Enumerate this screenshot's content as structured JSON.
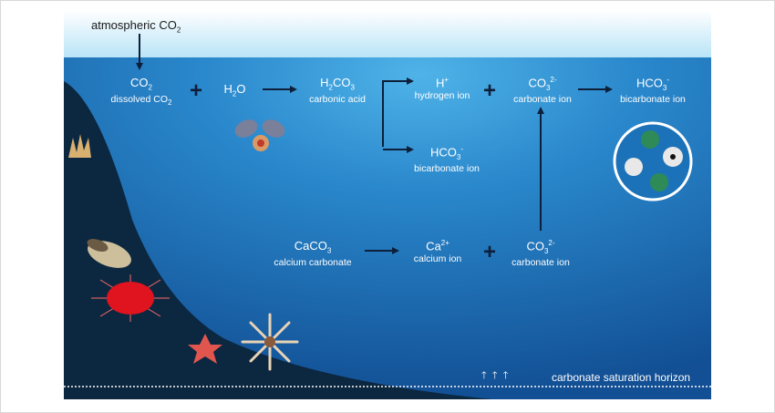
{
  "atmosphere": {
    "label": "atmospheric CO",
    "sub": "2"
  },
  "species": {
    "co2_dissolved": {
      "formula": "CO",
      "sub": "2",
      "name": "dissolved CO",
      "name_sub": "2"
    },
    "h2o": {
      "formula_a": "H",
      "sub": "2",
      "formula_b": "O"
    },
    "h2co3": {
      "formula_a": "H",
      "sub1": "2",
      "formula_b": "CO",
      "sub2": "3",
      "name": "carbonic acid"
    },
    "h_ion": {
      "formula": "H",
      "sup": "+",
      "name": "hydrogen ion"
    },
    "hco3_lower": {
      "formula": "HCO",
      "sub": "3",
      "sup": "-",
      "name": "bicarbonate ion"
    },
    "co3_upper": {
      "formula": "CO",
      "sub": "3",
      "sup": "2-",
      "name": "carbonate ion"
    },
    "hco3_right": {
      "formula": "HCO",
      "sub": "3",
      "sup": "-",
      "name": "bicarbonate ion"
    },
    "caco3": {
      "formula": "CaCO",
      "sub": "3",
      "name": "calcium carbonate"
    },
    "ca_ion": {
      "formula": "Ca",
      "sup": "2+",
      "name": "calcium ion"
    },
    "co3_lower": {
      "formula": "CO",
      "sub": "3",
      "sup": "2-",
      "name": "carbonate ion"
    }
  },
  "operators": {
    "plus": "+"
  },
  "horizon": {
    "label": "carbonate saturation horizon"
  },
  "colors": {
    "sky_top": "#ffffff",
    "sky_bottom": "#b9e4f7",
    "water_top": "#3aa0da",
    "water_mid": "#1f78c0",
    "water_bottom": "#0f4f92",
    "seafloor": "#0c2740",
    "arrow": "#0d1f3a",
    "text": "#ffffff"
  }
}
